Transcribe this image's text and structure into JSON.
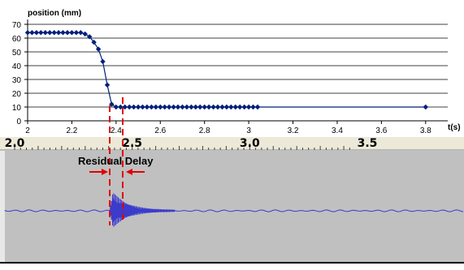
{
  "chart_data": [
    {
      "type": "line",
      "ylabel": "position (mm)",
      "xlabel": "t(s)",
      "xlim": [
        2,
        3.9
      ],
      "ylim": [
        0,
        70
      ],
      "x_ticks": [
        "2",
        "2.2",
        "2.4",
        "2.6",
        "2.8",
        "3",
        "3.2",
        "3.4",
        "3.6",
        "3.8"
      ],
      "y_ticks": [
        "0",
        "10",
        "20",
        "30",
        "40",
        "50",
        "60",
        "70"
      ],
      "grid": "horizontal",
      "series": [
        {
          "color": "#001f7a",
          "x": [
            2.0,
            2.02,
            2.04,
            2.06,
            2.08,
            2.1,
            2.12,
            2.14,
            2.16,
            2.18,
            2.2,
            2.22,
            2.24,
            2.26,
            2.28,
            2.3,
            2.32,
            2.34,
            2.36,
            2.38,
            2.4,
            2.42,
            2.44,
            2.46,
            2.48,
            2.5,
            2.52,
            2.54,
            2.56,
            2.58,
            2.6,
            2.62,
            2.64,
            2.66,
            2.68,
            2.7,
            2.72,
            2.74,
            2.76,
            2.78,
            2.8,
            2.82,
            2.84,
            2.86,
            2.88,
            2.9,
            2.92,
            2.94,
            2.96,
            2.98,
            3.0,
            3.02,
            3.04,
            3.8
          ],
          "y": [
            64,
            64,
            64,
            64,
            64,
            64,
            64,
            64,
            64,
            64,
            64,
            64,
            64,
            63,
            61,
            57,
            52,
            43,
            26,
            12,
            10,
            10,
            10,
            10,
            10,
            10,
            10,
            10,
            10,
            10,
            10,
            10,
            10,
            10,
            10,
            10,
            10,
            10,
            10,
            10,
            10,
            10,
            10,
            10,
            10,
            10,
            10,
            10,
            10,
            10,
            10,
            10,
            10,
            10
          ]
        }
      ]
    }
  ],
  "ruler": {
    "labels": [
      "2.0",
      "2.5",
      "3.0",
      "3.5"
    ]
  },
  "waveform": {
    "background": "#c0c0c0",
    "wave_color": "#3b3bcc"
  },
  "annotation": {
    "text": "Residual Delay",
    "color": "#e00000"
  }
}
